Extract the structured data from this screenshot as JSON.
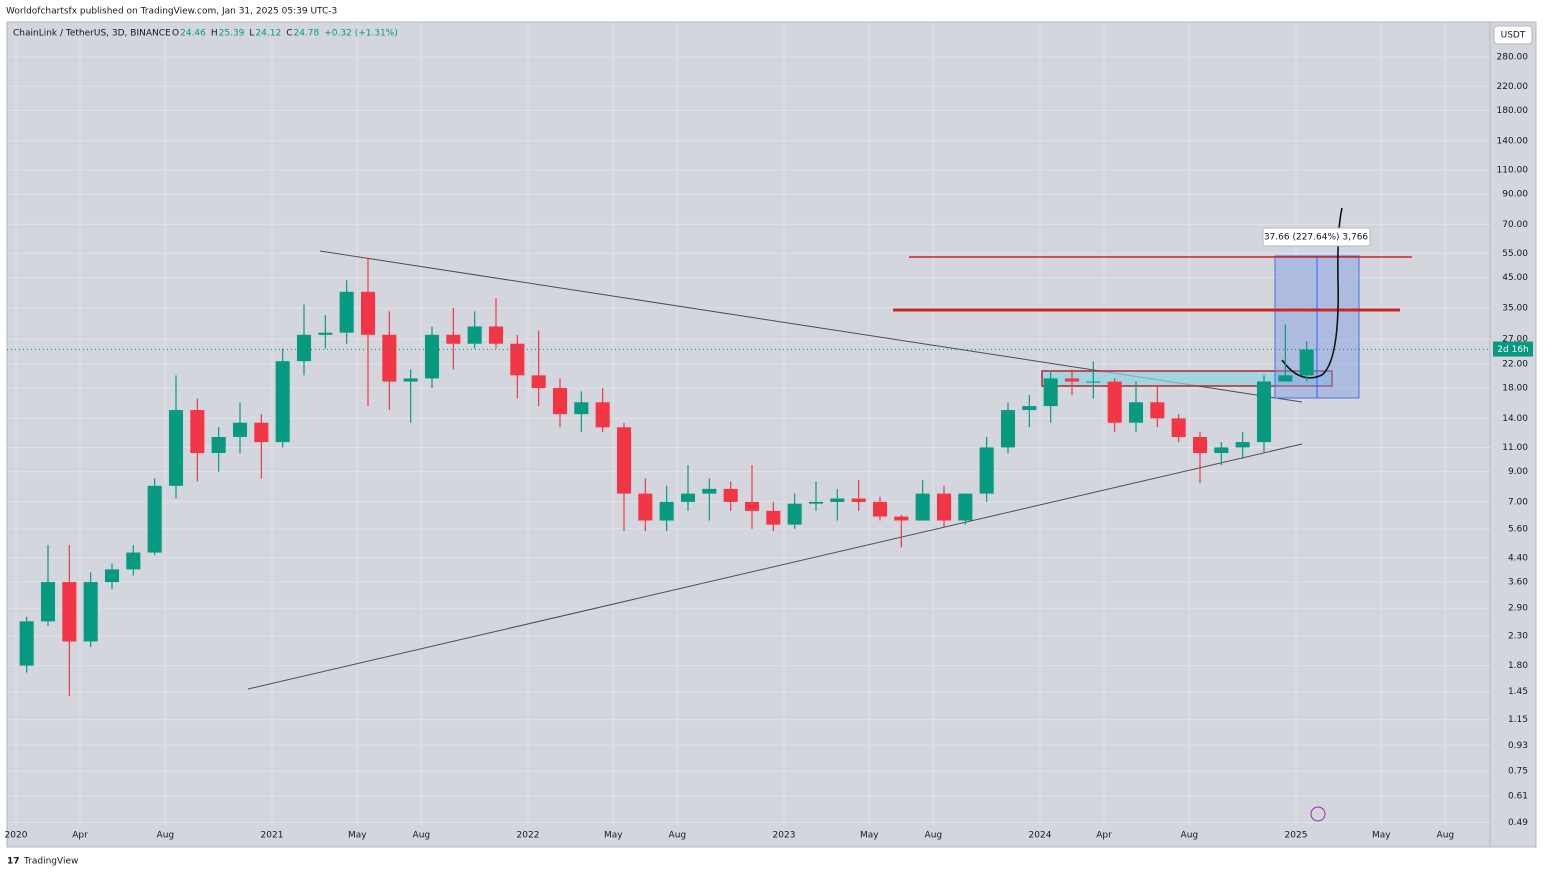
{
  "header": {
    "publisher": "Worldofchartsfx published on TradingView.com, Jan 31, 2025 05:39 UTC-3",
    "symbol": "ChainLink / TetherUS, 3D, BINANCE",
    "ohlc": [
      {
        "label": "O",
        "value": 24.46
      },
      {
        "label": "H",
        "value": 25.39
      },
      {
        "label": "L",
        "value": 24.12
      },
      {
        "label": "C",
        "value": 24.78
      }
    ],
    "change": "+0.32 (+1.31%)",
    "currency": "USDT",
    "countdown": "2d 16h",
    "measure": "37.66 (227.64%) 3,766",
    "footer": "TradingView"
  },
  "chart_data": {
    "type": "candlestick",
    "log_scale": true,
    "grid": true,
    "up_color": "#089981",
    "down_color": "#f23645",
    "x": [
      "2020-01",
      "2020-02",
      "2020-03",
      "2020-04",
      "2020-05",
      "2020-06",
      "2020-07",
      "2020-08",
      "2020-09",
      "2020-10",
      "2020-11",
      "2020-12",
      "2021-01",
      "2021-02",
      "2021-03",
      "2021-04",
      "2021-05",
      "2021-06",
      "2021-07",
      "2021-08",
      "2021-09",
      "2021-10",
      "2021-11",
      "2021-12",
      "2022-01",
      "2022-02",
      "2022-03",
      "2022-04",
      "2022-05",
      "2022-06",
      "2022-07",
      "2022-08",
      "2022-09",
      "2022-10",
      "2022-11",
      "2022-12",
      "2023-01",
      "2023-02",
      "2023-03",
      "2023-04",
      "2023-05",
      "2023-06",
      "2023-07",
      "2023-08",
      "2023-09",
      "2023-10",
      "2023-11",
      "2023-12",
      "2024-01",
      "2024-02",
      "2024-03",
      "2024-04",
      "2024-05",
      "2024-06",
      "2024-07",
      "2024-08",
      "2024-09",
      "2024-10",
      "2024-11",
      "2024-12",
      "2025-01"
    ],
    "open": [
      1.8,
      2.6,
      3.6,
      2.2,
      3.6,
      4.0,
      4.6,
      8.0,
      15.0,
      10.5,
      12.0,
      13.5,
      11.5,
      22.5,
      28.0,
      28.5,
      40.0,
      28.0,
      19.0,
      19.5,
      28.0,
      26.0,
      30.0,
      26.0,
      20.0,
      18.0,
      14.5,
      16.0,
      13.0,
      7.5,
      6.0,
      7.0,
      7.5,
      7.8,
      7.0,
      6.5,
      5.8,
      6.9,
      7.0,
      7.2,
      7.0,
      6.2,
      6.0,
      7.5,
      6.0,
      7.5,
      11.0,
      15.0,
      15.5,
      19.5,
      19.0,
      19.0,
      13.5,
      16.0,
      14.0,
      12.0,
      10.5,
      11.0,
      11.5,
      19.0,
      20.0
    ],
    "high": [
      2.7,
      4.9,
      4.9,
      3.9,
      4.2,
      4.9,
      8.5,
      20.0,
      16.5,
      13.0,
      16.0,
      14.5,
      25.0,
      36.0,
      33.0,
      44.0,
      53.0,
      34.0,
      21.0,
      30.0,
      35.0,
      34.0,
      38.0,
      28.0,
      29.0,
      19.5,
      17.5,
      18.0,
      13.5,
      8.5,
      8.0,
      9.5,
      8.5,
      8.3,
      9.5,
      7.0,
      7.5,
      8.3,
      7.8,
      8.4,
      7.3,
      6.3,
      8.4,
      8.0,
      7.5,
      12.0,
      16.0,
      17.0,
      20.5,
      21.0,
      22.5,
      19.5,
      19.0,
      18.5,
      14.5,
      12.5,
      11.5,
      12.5,
      20.0,
      30.5,
      26.5
    ],
    "low": [
      1.7,
      2.5,
      1.4,
      2.1,
      3.4,
      3.8,
      4.5,
      7.2,
      8.3,
      9.0,
      10.5,
      8.5,
      11.0,
      20.0,
      25.0,
      26.0,
      15.5,
      15.0,
      13.5,
      18.0,
      21.0,
      25.0,
      25.0,
      16.5,
      15.5,
      13.0,
      12.5,
      12.5,
      5.5,
      5.5,
      5.5,
      6.5,
      6.0,
      6.5,
      5.6,
      5.5,
      5.6,
      6.5,
      6.0,
      6.5,
      6.0,
      4.8,
      6.0,
      5.7,
      5.8,
      7.0,
      10.5,
      13.0,
      13.5,
      17.0,
      16.5,
      12.5,
      12.5,
      13.0,
      11.5,
      8.2,
      9.5,
      10.0,
      10.5,
      19.0,
      19.0
    ],
    "close": [
      2.6,
      3.6,
      2.2,
      3.6,
      4.0,
      4.6,
      8.0,
      15.0,
      10.5,
      12.0,
      13.5,
      11.5,
      22.5,
      28.0,
      28.5,
      40.0,
      28.0,
      19.0,
      19.5,
      28.0,
      26.0,
      30.0,
      26.0,
      20.0,
      18.0,
      14.5,
      16.0,
      13.0,
      7.5,
      6.0,
      7.0,
      7.5,
      7.8,
      7.0,
      6.5,
      5.8,
      6.9,
      7.0,
      7.2,
      7.0,
      6.2,
      6.0,
      7.5,
      6.0,
      7.5,
      11.0,
      15.0,
      15.5,
      19.5,
      19.0,
      19.0,
      13.5,
      16.0,
      14.0,
      12.0,
      10.5,
      11.0,
      11.5,
      19.0,
      20.0,
      24.78
    ],
    "xlim": [
      "2020-01",
      "2025-10"
    ],
    "xticks": [
      {
        "value": "2020-01",
        "label": "2020"
      },
      {
        "value": "2020-04",
        "label": "Apr"
      },
      {
        "value": "2020-08",
        "label": "Aug"
      },
      {
        "value": "2021-01",
        "label": "2021"
      },
      {
        "value": "2021-05",
        "label": "May"
      },
      {
        "value": "2021-08",
        "label": "Aug"
      },
      {
        "value": "2022-01",
        "label": "2022"
      },
      {
        "value": "2022-05",
        "label": "May"
      },
      {
        "value": "2022-08",
        "label": "Aug"
      },
      {
        "value": "2023-01",
        "label": "2023"
      },
      {
        "value": "2023-05",
        "label": "May"
      },
      {
        "value": "2023-08",
        "label": "Aug"
      },
      {
        "value": "2024-01",
        "label": "2024"
      },
      {
        "value": "2024-04",
        "label": "Apr"
      },
      {
        "value": "2024-08",
        "label": "Aug"
      },
      {
        "value": "2025-01",
        "label": "2025"
      },
      {
        "value": "2025-05",
        "label": "May"
      },
      {
        "value": "2025-08",
        "label": "Aug"
      }
    ],
    "ylim": [
      0.48,
      375
    ],
    "yticks": [
      {
        "value": 280,
        "label": "280.00"
      },
      {
        "value": 220,
        "label": "220.00"
      },
      {
        "value": 180,
        "label": "180.00"
      },
      {
        "value": 140,
        "label": "140.00"
      },
      {
        "value": 110,
        "label": "110.00"
      },
      {
        "value": 90,
        "label": "90.00"
      },
      {
        "value": 70,
        "label": "70.00"
      },
      {
        "value": 55,
        "label": "55.00"
      },
      {
        "value": 45,
        "label": "45.00"
      },
      {
        "value": 35,
        "label": "35.00"
      },
      {
        "value": 27,
        "label": "27.00"
      },
      {
        "value": 22,
        "label": "22.00"
      },
      {
        "value": 18,
        "label": "18.00"
      },
      {
        "value": 14,
        "label": "14.00"
      },
      {
        "value": 11,
        "label": "11.00"
      },
      {
        "value": 9,
        "label": "9.00"
      },
      {
        "value": 7,
        "label": "7.00"
      },
      {
        "value": 5.6,
        "label": "5.60"
      },
      {
        "value": 4.4,
        "label": "4.40"
      },
      {
        "value": 3.6,
        "label": "3.60"
      },
      {
        "value": 2.9,
        "label": "2.90"
      },
      {
        "value": 2.3,
        "label": "2.30"
      },
      {
        "value": 1.8,
        "label": "1.80"
      },
      {
        "value": 1.45,
        "label": "1.45"
      },
      {
        "value": 1.15,
        "label": "1.15"
      },
      {
        "value": 0.93,
        "label": "0.93"
      },
      {
        "value": 0.75,
        "label": "0.75"
      },
      {
        "value": 0.61,
        "label": "0.61"
      },
      {
        "value": 0.49,
        "label": "0.49"
      }
    ]
  }
}
